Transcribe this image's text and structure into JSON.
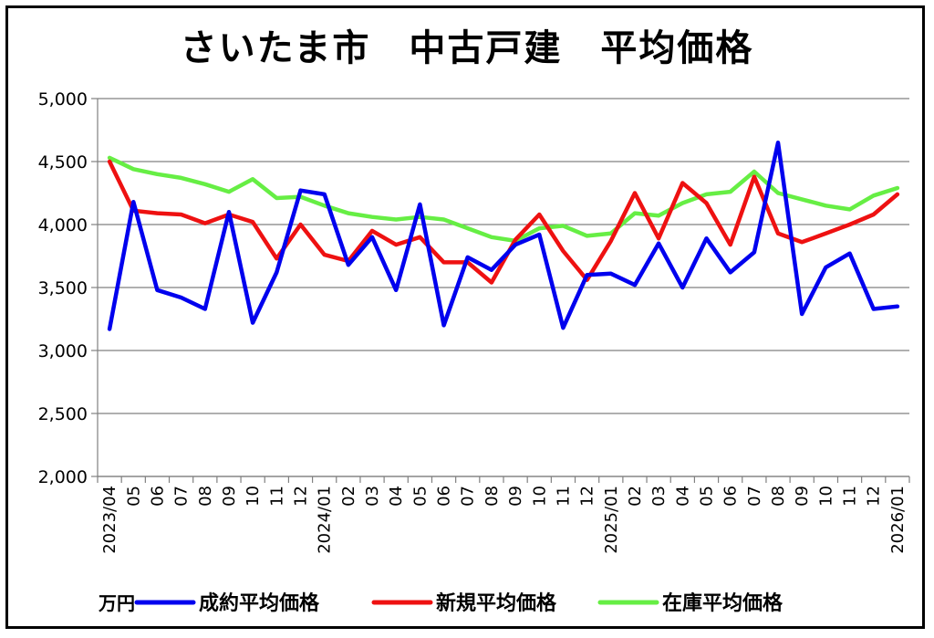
{
  "chart_data": {
    "type": "line",
    "title": "さいたま市　中古戸建　平均価格",
    "unit": "万円",
    "ylim": [
      2000,
      5000
    ],
    "yticks": [
      "2,000",
      "2,500",
      "3,000",
      "3,500",
      "4,000",
      "4,500",
      "5,000"
    ],
    "ytick_values": [
      2000,
      2500,
      3000,
      3500,
      4000,
      4500,
      5000
    ],
    "grid": true,
    "legend": "bottom",
    "x": [
      "2023/04",
      "05",
      "06",
      "07",
      "08",
      "09",
      "10",
      "11",
      "12",
      "2024/01",
      "02",
      "03",
      "04",
      "05",
      "06",
      "07",
      "08",
      "09",
      "10",
      "11",
      "12",
      "2025/01",
      "02",
      "03",
      "04",
      "05",
      "06",
      "07",
      "08",
      "09",
      "10",
      "11",
      "12",
      "2026/01"
    ],
    "series": [
      {
        "name": "成約平均価格",
        "color": "#0000ee",
        "values": [
          3170,
          4180,
          3480,
          3420,
          3330,
          4100,
          3220,
          3620,
          4270,
          4240,
          3680,
          3900,
          3480,
          4160,
          3200,
          3740,
          3640,
          3840,
          3920,
          3180,
          3600,
          3610,
          3520,
          3850,
          3500,
          3890,
          3620,
          3780,
          4650,
          3290,
          3660,
          3770,
          3330,
          3350
        ]
      },
      {
        "name": "新規平均価格",
        "color": "#ee1111",
        "values": [
          4500,
          4110,
          4090,
          4080,
          4010,
          4080,
          4020,
          3730,
          4000,
          3760,
          3710,
          3950,
          3840,
          3900,
          3700,
          3700,
          3540,
          3880,
          4080,
          3790,
          3560,
          3870,
          4250,
          3890,
          4330,
          4170,
          3840,
          4380,
          3930,
          3860,
          3930,
          4000,
          4080,
          4240
        ]
      },
      {
        "name": "在庫平均価格",
        "color": "#66ee44",
        "values": [
          4530,
          4440,
          4400,
          4370,
          4320,
          4260,
          4360,
          4210,
          4220,
          4150,
          4090,
          4060,
          4040,
          4060,
          4040,
          3970,
          3900,
          3870,
          3970,
          3990,
          3910,
          3930,
          4090,
          4070,
          4170,
          4240,
          4260,
          4420,
          4250,
          4200,
          4150,
          4120,
          4230,
          4290
        ]
      }
    ]
  }
}
